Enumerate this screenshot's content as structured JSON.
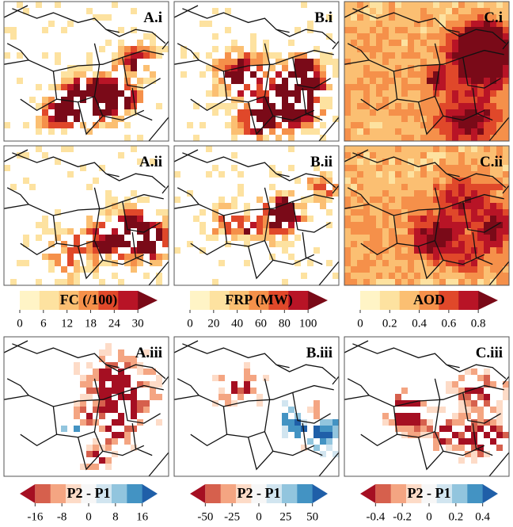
{
  "panels": [
    {
      "label": "A.i"
    },
    {
      "label": "B.i"
    },
    {
      "label": "C.i"
    },
    {
      "label": "A.ii"
    },
    {
      "label": "B.ii"
    },
    {
      "label": "C.ii"
    },
    {
      "label": "A.iii"
    },
    {
      "label": "B.iii"
    },
    {
      "label": "C.iii"
    }
  ],
  "colorbars": [
    {
      "title": "FC (/100)",
      "lim": [
        0,
        30
      ],
      "ticks": [
        0,
        6,
        12,
        18,
        24,
        30
      ],
      "extend": "max",
      "colors": [
        "#fff4c6",
        "#fde2a0",
        "#fbbf72",
        "#f5904a",
        "#e0482a",
        "#b81426",
        "#7a0a18"
      ]
    },
    {
      "title": "FRP (MW)",
      "lim": [
        0,
        100
      ],
      "ticks": [
        0,
        20,
        40,
        60,
        80,
        100
      ],
      "extend": "max",
      "colors": [
        "#fff4c6",
        "#fde2a0",
        "#fbbf72",
        "#f5904a",
        "#e0482a",
        "#b81426",
        "#7a0a18"
      ]
    },
    {
      "title": "AOD",
      "lim": [
        0,
        0.8
      ],
      "ticks": [
        0,
        0.2,
        0.4,
        0.6,
        0.8
      ],
      "extend": "max",
      "colors": [
        "#fff4c6",
        "#fde2a0",
        "#fbbf72",
        "#f5904a",
        "#e0482a",
        "#b81426",
        "#7a0a18"
      ]
    },
    {
      "title": "P2 - P1",
      "lim": [
        -16,
        16
      ],
      "ticks": [
        -16,
        -8,
        0,
        8,
        16
      ],
      "extend": "both",
      "colors": [
        "#a50f22",
        "#d6604d",
        "#f4a582",
        "#fddbc7",
        "#f7f7f7",
        "#d1e5f0",
        "#92c5de",
        "#4393c3",
        "#1f5fa8"
      ]
    },
    {
      "title": "P2 - P1",
      "lim": [
        -50,
        50
      ],
      "ticks": [
        -50,
        -25,
        0,
        25,
        50
      ],
      "extend": "both",
      "colors": [
        "#a50f22",
        "#d6604d",
        "#f4a582",
        "#fddbc7",
        "#f7f7f7",
        "#d1e5f0",
        "#92c5de",
        "#4393c3",
        "#1f5fa8"
      ]
    },
    {
      "title": "P2 - P1",
      "lim": [
        -0.4,
        0.4
      ],
      "ticks": [
        -0.4,
        -0.2,
        0,
        0.2,
        0.4
      ],
      "extend": "both",
      "colors": [
        "#a50f22",
        "#d6604d",
        "#f4a582",
        "#fddbc7",
        "#f7f7f7",
        "#d1e5f0",
        "#92c5de",
        "#4393c3",
        "#1f5fa8"
      ]
    }
  ]
}
